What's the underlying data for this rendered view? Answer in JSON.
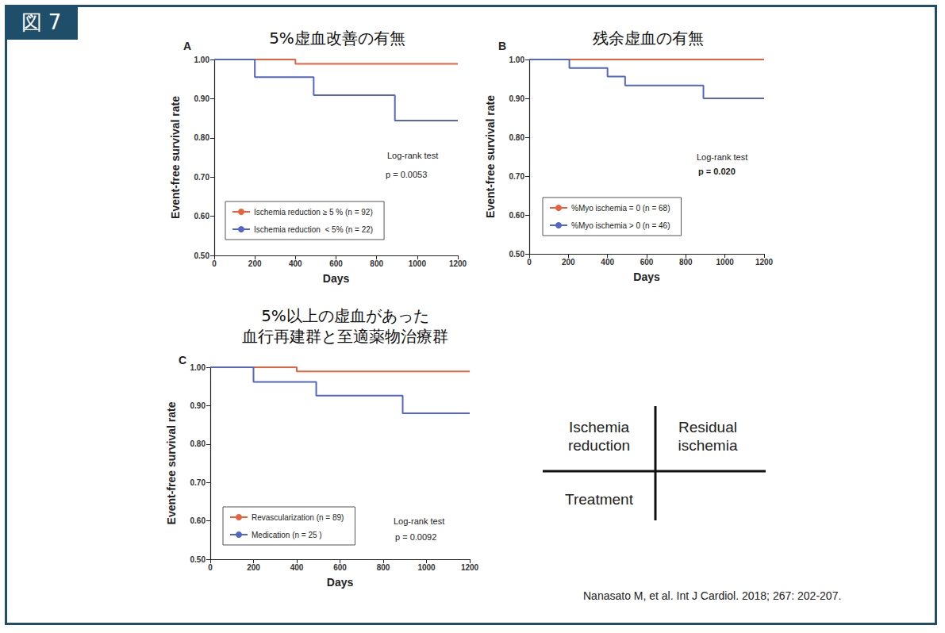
{
  "figure_label": "図 7",
  "citation": "Nanasato M, et al. Int J Cardiol. 2018; 267: 202-207.",
  "diagram": {
    "top_left": "Ischemia\nreduction",
    "top_right": "Residual\nischemia",
    "bottom_left": "Treatment"
  },
  "chart_data": [
    {
      "type": "step",
      "title": "5%虚血改善の有無",
      "panel_label": "A",
      "x_label": "Days",
      "y_label": "Event-free survival rate",
      "x": [
        0,
        200,
        400,
        490,
        890,
        1200
      ],
      "series": [
        {
          "name": "Ischemia reduction ≥ 5 % (n = 92)",
          "color": "#e8603c",
          "values": [
            1.0,
            1.0,
            0.989,
            0.989,
            0.989,
            0.989
          ]
        },
        {
          "name": "Ischemia reduction  < 5% (n = 22)",
          "color": "#5266c6",
          "values": [
            1.0,
            0.955,
            0.955,
            0.909,
            0.844,
            0.844
          ]
        }
      ],
      "annotations": [
        "Log-rank test",
        "p = 0.0053"
      ],
      "xlim": [
        0,
        1200
      ],
      "xticks": [
        0,
        200,
        400,
        600,
        800,
        1000,
        1200
      ],
      "ylim": [
        0.5,
        1.0
      ],
      "yticks": [
        {
          "value": 0.5,
          "label": "0.50"
        },
        {
          "value": 0.6,
          "label": "0.60"
        },
        {
          "value": 0.7,
          "label": "0.70"
        },
        {
          "value": 0.8,
          "label": "0.80"
        },
        {
          "value": 0.9,
          "label": "0.90"
        },
        {
          "value": 1.0,
          "label": "1.00"
        }
      ],
      "grid": false,
      "legend": "lower left"
    },
    {
      "type": "step",
      "title": "残余虚血の有無",
      "panel_label": "B",
      "x_label": "Days",
      "y_label": "Event-free survival rate",
      "x": [
        0,
        205,
        400,
        490,
        890,
        1200
      ],
      "series": [
        {
          "name": "%Myo ischemia = 0 (n = 68)",
          "color": "#e8603c",
          "values": [
            1.0,
            1.0,
            1.0,
            1.0,
            1.0,
            1.0
          ]
        },
        {
          "name": "%Myo ischemia > 0 (n = 46)",
          "color": "#5266c6",
          "values": [
            1.0,
            0.978,
            0.956,
            0.933,
            0.9,
            0.9
          ]
        }
      ],
      "annotations": [
        "Log-rank test",
        "p = 0.020"
      ],
      "xlim": [
        0,
        1200
      ],
      "xticks": [
        0,
        200,
        400,
        600,
        800,
        1000,
        1200
      ],
      "ylim": [
        0.5,
        1.0
      ],
      "yticks": [
        {
          "value": 0.5,
          "label": "0.50"
        },
        {
          "value": 0.6,
          "label": "0.60"
        },
        {
          "value": 0.7,
          "label": "0.70"
        },
        {
          "value": 0.8,
          "label": "0.80"
        },
        {
          "value": 0.9,
          "label": "0.90"
        },
        {
          "value": 1.0,
          "label": "1.00"
        }
      ],
      "grid": false,
      "legend": "lower left"
    },
    {
      "type": "step",
      "title": "5%以上の虚血があった\n血行再建群と至適薬物治療群",
      "panel_label": "C",
      "x_label": "Days",
      "y_label": "Event-free survival rate",
      "x": [
        0,
        200,
        400,
        490,
        890,
        1200
      ],
      "series": [
        {
          "name": "Revascularization (n = 89)",
          "color": "#e8603c",
          "values": [
            1.0,
            1.0,
            0.989,
            0.989,
            0.989,
            0.989
          ]
        },
        {
          "name": "Medication (n = 25 )",
          "color": "#5266c6",
          "values": [
            1.0,
            0.962,
            0.962,
            0.926,
            0.88,
            0.88
          ]
        }
      ],
      "annotations": [
        "Log-rank test",
        "p = 0.0092"
      ],
      "xlim": [
        0,
        1200
      ],
      "xticks": [
        0,
        200,
        400,
        600,
        800,
        1000,
        1200
      ],
      "ylim": [
        0.5,
        1.0
      ],
      "yticks": [
        {
          "value": 0.5,
          "label": "0.50"
        },
        {
          "value": 0.6,
          "label": "0.60"
        },
        {
          "value": 0.7,
          "label": "0.70"
        },
        {
          "value": 0.8,
          "label": "0.80"
        },
        {
          "value": 0.9,
          "label": "0.90"
        },
        {
          "value": 1.0,
          "label": "1.00"
        }
      ],
      "grid": false,
      "legend": "lower left"
    }
  ]
}
